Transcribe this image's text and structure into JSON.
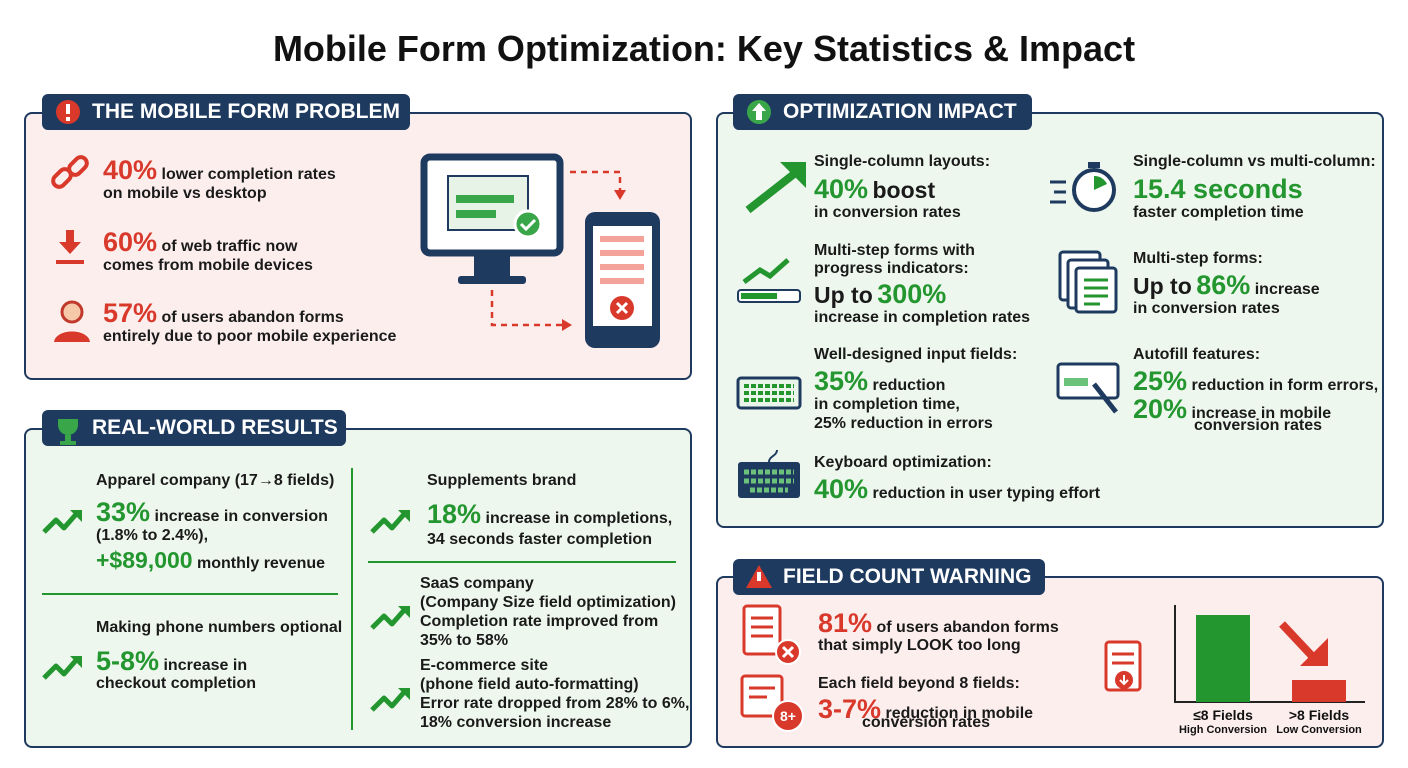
{
  "title": "Mobile Form Optimization: Key Statistics & Impact",
  "problem": {
    "heading": "THE MOBILE FORM PROBLEM",
    "items": [
      {
        "stat": "40%",
        "text": "lower completion rates",
        "line2": "on mobile vs desktop"
      },
      {
        "stat": "60%",
        "text": "of web traffic now",
        "line2": "comes from mobile devices"
      },
      {
        "stat": "57%",
        "text": "of users abandon forms",
        "line2": "entirely due to poor mobile experience"
      }
    ]
  },
  "results": {
    "heading": "REAL-WORLD RESULTS",
    "cases": [
      {
        "label": "Apparel company (17→8 fields)",
        "stat": "33%",
        "text": "increase in conversion",
        "line2": "(1.8% to 2.4%),",
        "stat2": "+$89,000",
        "text2": "monthly revenue"
      },
      {
        "label": "Making phone numbers optional",
        "stat": "5-8%",
        "text": "increase in",
        "line2": "checkout completion"
      },
      {
        "label": "Supplements brand",
        "stat": "18%",
        "text": "increase in completions,",
        "line2": "34 seconds faster completion"
      },
      {
        "lines": [
          "SaaS company",
          "(Company Size field optimization)",
          "Completion rate improved from",
          "35% to 58%"
        ]
      },
      {
        "lines": [
          "E-commerce site",
          "(phone field auto-formatting)",
          "Error rate dropped from 28% to 6%,",
          "18% conversion increase"
        ]
      }
    ]
  },
  "impact": {
    "heading": "OPTIMIZATION IMPACT",
    "items": [
      {
        "label": "Single-column layouts:",
        "stat": "40%",
        "text": "boost",
        "line2": "in conversion rates"
      },
      {
        "label": "Single-column vs multi-column:",
        "stat": "15.4 seconds",
        "line2": "faster completion time"
      },
      {
        "label": "Multi-step forms with",
        "label2": "progress indicators:",
        "prefix": "Up to",
        "stat": "300%",
        "line2": "increase in completion rates"
      },
      {
        "label": "Multi-step forms:",
        "prefix": "Up to",
        "stat": "86%",
        "text": "increase",
        "line2": "in conversion rates"
      },
      {
        "label": "Well-designed input fields:",
        "stat": "35%",
        "text": "reduction",
        "line2": "in completion time,",
        "line3": "25% reduction in errors"
      },
      {
        "label": "Autofill features:",
        "stat": "25%",
        "text": "reduction in form errors,",
        "stat2": "20%",
        "text2": "increase in mobile",
        "line3": "conversion rates"
      },
      {
        "label": "Keyboard optimization:",
        "stat": "40%",
        "text": "reduction in user typing effort"
      }
    ]
  },
  "warning": {
    "heading": "FIELD COUNT WARNING",
    "items": [
      {
        "stat": "81%",
        "text": "of users abandon forms",
        "line2": "that simply LOOK too long"
      },
      {
        "label": "Each field beyond 8 fields:",
        "stat": "3-7%",
        "text": "reduction in mobile",
        "line2": "conversion rates"
      }
    ],
    "badge": "8+",
    "bars": [
      {
        "label": "≤8 Fields",
        "sublabel": "High Conversion"
      },
      {
        "label": ">8 Fields",
        "sublabel": "Low Conversion"
      }
    ]
  }
}
